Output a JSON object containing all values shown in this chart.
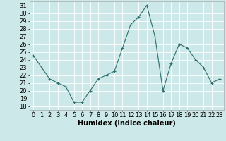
{
  "x": [
    0,
    1,
    2,
    3,
    4,
    5,
    6,
    7,
    8,
    9,
    10,
    11,
    12,
    13,
    14,
    15,
    16,
    17,
    18,
    19,
    20,
    21,
    22,
    23
  ],
  "y": [
    24.5,
    23,
    21.5,
    21,
    20.5,
    18.5,
    18.5,
    20,
    21.5,
    22,
    22.5,
    25.5,
    28.5,
    29.5,
    31,
    27,
    20,
    23.5,
    26,
    25.5,
    24,
    23,
    21,
    21.5
  ],
  "line_color": "#2d6e6e",
  "marker": "+",
  "marker_size": 3,
  "bg_color": "#cce8e8",
  "grid_color": "#ffffff",
  "grid_minor_color": "#e8f4f4",
  "xlabel": "Humidex (Indice chaleur)",
  "ylabel_ticks": [
    18,
    19,
    20,
    21,
    22,
    23,
    24,
    25,
    26,
    27,
    28,
    29,
    30,
    31
  ],
  "xlim": [
    -0.5,
    23.5
  ],
  "ylim": [
    17.5,
    31.5
  ],
  "xticks": [
    0,
    1,
    2,
    3,
    4,
    5,
    6,
    7,
    8,
    9,
    10,
    11,
    12,
    13,
    14,
    15,
    16,
    17,
    18,
    19,
    20,
    21,
    22,
    23
  ],
  "xlabel_fontsize": 7,
  "tick_fontsize": 6
}
